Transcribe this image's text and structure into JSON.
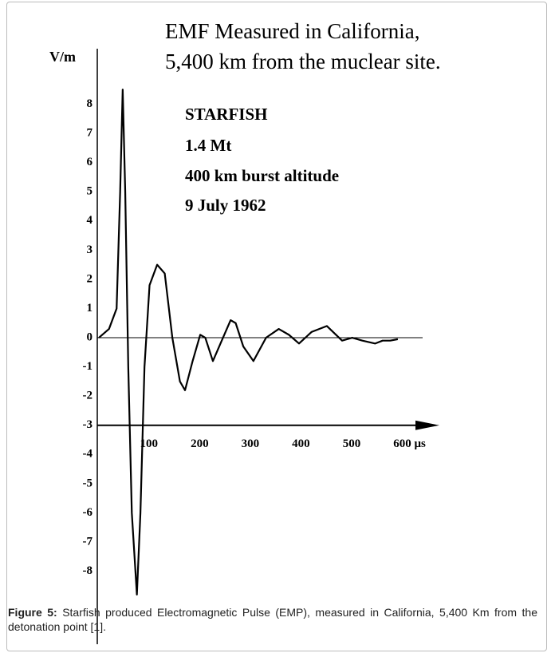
{
  "chart_data": {
    "type": "line",
    "title": [
      "EMF Measured in California,",
      "5,400 km from the muclear site."
    ],
    "y_label": "V/m",
    "annotations": [
      "STARFISH",
      "1.4 Mt",
      "400 km burst altitude",
      "9 July 1962"
    ],
    "x": [
      0,
      20,
      35,
      42,
      47,
      52,
      58,
      65,
      75,
      82,
      90,
      100,
      115,
      130,
      145,
      160,
      170,
      185,
      200,
      210,
      225,
      240,
      260,
      270,
      285,
      305,
      330,
      355,
      375,
      395,
      420,
      450,
      480,
      500,
      520,
      545,
      560,
      575,
      590
    ],
    "series": [
      {
        "color": "#000000",
        "values": [
          0,
          0.3,
          1,
          5,
          8.5,
          5,
          -1,
          -6,
          -8.8,
          -6,
          -1,
          1.8,
          2.5,
          2.2,
          0,
          -1.5,
          -1.8,
          -0.8,
          0.1,
          0,
          -0.8,
          -0.2,
          0.6,
          0.5,
          -0.3,
          -0.8,
          0,
          0.3,
          0.1,
          -0.2,
          0.2,
          0.4,
          -0.1,
          0,
          -0.1,
          -0.2,
          -0.1,
          -0.1,
          -0.05
        ]
      }
    ],
    "xlim": [
      0,
      672
    ],
    "ylim": [
      -10.5,
      9.9
    ],
    "xticks": [
      100,
      200,
      300,
      400,
      500,
      {
        "value": 600,
        "label": "600 μs"
      }
    ],
    "yticks": [
      8,
      7,
      6,
      5,
      4,
      3,
      2,
      1,
      0,
      -1,
      -2,
      -3,
      -4,
      -5,
      -6,
      -7,
      -8
    ],
    "x_axis_position": -3,
    "grid": false
  },
  "caption": {
    "label": "Figure 5:",
    "text": "Starfish produced Electromagnetic Pulse (EMP), measured in California, 5,400 Km from the detonation point [1]."
  }
}
